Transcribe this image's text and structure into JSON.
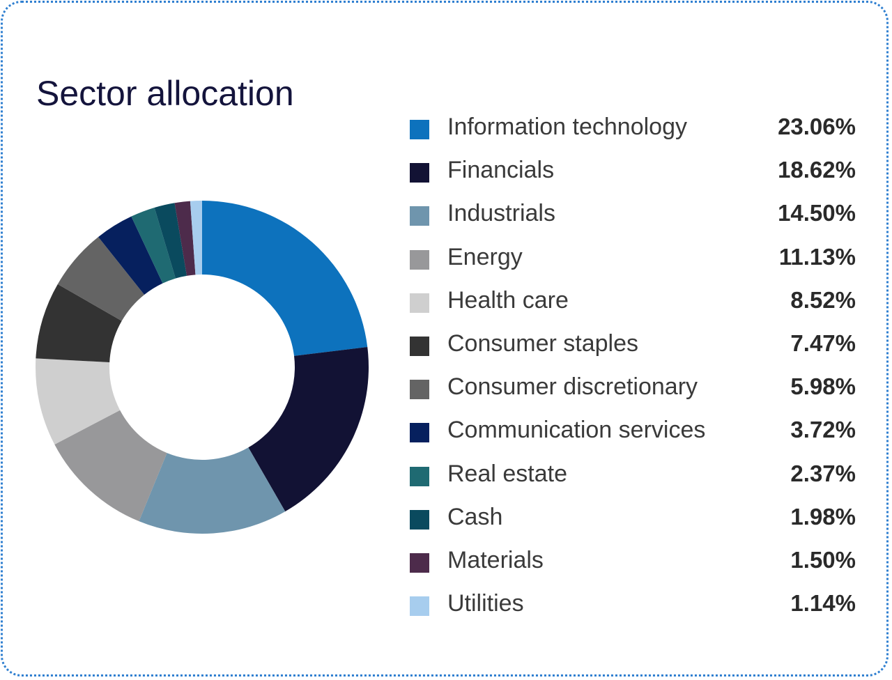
{
  "chart_data": {
    "type": "pie",
    "title": "Sector allocation",
    "legend_position": "right",
    "series": [
      {
        "label": "Information technology",
        "value": 23.06,
        "display": "23.06%",
        "color": "#0d72bd"
      },
      {
        "label": "Financials",
        "value": 18.62,
        "display": "18.62%",
        "color": "#121234"
      },
      {
        "label": "Industrials",
        "value": 14.5,
        "display": "14.50%",
        "color": "#6f95ad"
      },
      {
        "label": "Energy",
        "value": 11.13,
        "display": "11.13%",
        "color": "#98989a"
      },
      {
        "label": "Health care",
        "value": 8.52,
        "display": "8.52%",
        "color": "#cfcfcf"
      },
      {
        "label": "Consumer staples",
        "value": 7.47,
        "display": "7.47%",
        "color": "#333333"
      },
      {
        "label": "Consumer discretionary",
        "value": 5.98,
        "display": "5.98%",
        "color": "#646464"
      },
      {
        "label": "Communication services",
        "value": 3.72,
        "display": "3.72%",
        "color": "#06205e"
      },
      {
        "label": "Real estate",
        "value": 2.37,
        "display": "2.37%",
        "color": "#1f6a72"
      },
      {
        "label": "Cash",
        "value": 1.98,
        "display": "1.98%",
        "color": "#0a4a5e"
      },
      {
        "label": "Materials",
        "value": 1.5,
        "display": "1.50%",
        "color": "#4d2b4b"
      },
      {
        "label": "Utilities",
        "value": 1.14,
        "display": "1.14%",
        "color": "#a7cdee"
      }
    ]
  },
  "card": {
    "border_color": "#2f7fd0"
  }
}
